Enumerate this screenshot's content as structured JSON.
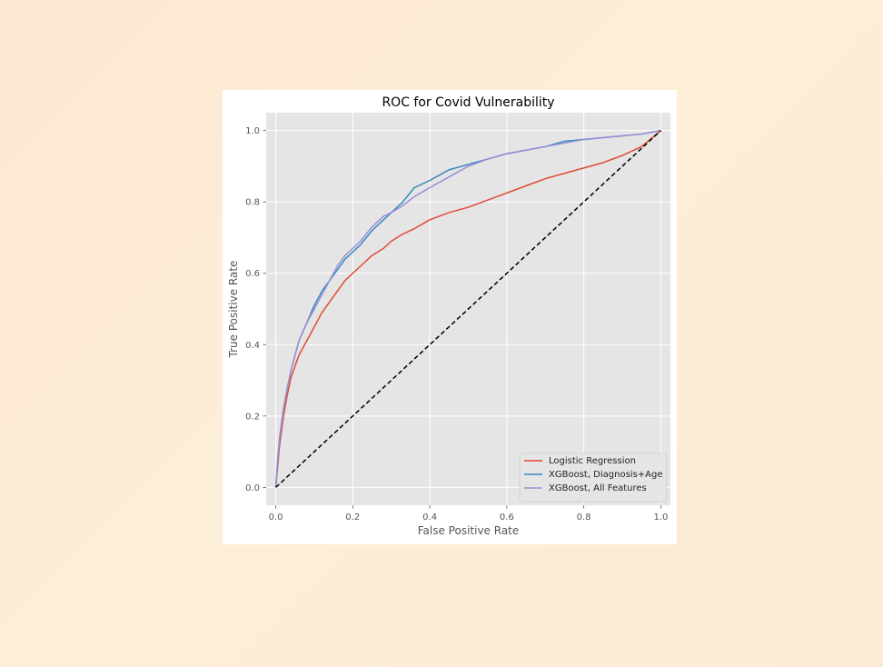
{
  "chart_data": {
    "type": "line",
    "title": "ROC for Covid Vulnerability",
    "xlabel": "False Positive Rate",
    "ylabel": "True Positive Rate",
    "xlim": [
      -0.025,
      1.025
    ],
    "ylim": [
      -0.05,
      1.05
    ],
    "xticks": [
      "0.0",
      "0.2",
      "0.4",
      "0.6",
      "0.8",
      "1.0"
    ],
    "yticks": [
      "0.0",
      "0.2",
      "0.4",
      "0.6",
      "0.8",
      "1.0"
    ],
    "grid": true,
    "legend_position": "lower-right",
    "series": [
      {
        "name": "Logistic Regression",
        "color": "#E24A33",
        "x": [
          0.0,
          0.005,
          0.01,
          0.02,
          0.03,
          0.04,
          0.05,
          0.06,
          0.08,
          0.1,
          0.12,
          0.14,
          0.16,
          0.18,
          0.2,
          0.22,
          0.25,
          0.28,
          0.3,
          0.33,
          0.36,
          0.4,
          0.45,
          0.5,
          0.55,
          0.6,
          0.65,
          0.7,
          0.75,
          0.8,
          0.85,
          0.9,
          0.95,
          1.0
        ],
        "y": [
          0.0,
          0.06,
          0.12,
          0.2,
          0.26,
          0.31,
          0.34,
          0.37,
          0.41,
          0.45,
          0.49,
          0.52,
          0.55,
          0.58,
          0.6,
          0.62,
          0.65,
          0.67,
          0.69,
          0.71,
          0.725,
          0.75,
          0.77,
          0.785,
          0.805,
          0.825,
          0.845,
          0.865,
          0.88,
          0.895,
          0.91,
          0.93,
          0.955,
          1.0
        ]
      },
      {
        "name": "XGBoost, Diagnosis+Age",
        "color": "#348ABD",
        "x": [
          0.0,
          0.005,
          0.01,
          0.02,
          0.03,
          0.04,
          0.05,
          0.06,
          0.08,
          0.1,
          0.12,
          0.14,
          0.16,
          0.18,
          0.2,
          0.22,
          0.25,
          0.28,
          0.3,
          0.33,
          0.36,
          0.4,
          0.45,
          0.5,
          0.55,
          0.6,
          0.65,
          0.7,
          0.75,
          0.8,
          0.85,
          0.9,
          0.95,
          1.0
        ],
        "y": [
          0.0,
          0.08,
          0.14,
          0.22,
          0.28,
          0.33,
          0.37,
          0.41,
          0.46,
          0.51,
          0.55,
          0.58,
          0.61,
          0.64,
          0.66,
          0.68,
          0.72,
          0.75,
          0.77,
          0.8,
          0.84,
          0.86,
          0.89,
          0.905,
          0.92,
          0.935,
          0.945,
          0.955,
          0.97,
          0.975,
          0.98,
          0.985,
          0.99,
          1.0
        ]
      },
      {
        "name": "XGBoost, All Features",
        "color": "#988ED5",
        "x": [
          0.0,
          0.005,
          0.01,
          0.02,
          0.03,
          0.04,
          0.05,
          0.06,
          0.08,
          0.1,
          0.12,
          0.14,
          0.16,
          0.18,
          0.2,
          0.22,
          0.25,
          0.28,
          0.3,
          0.33,
          0.36,
          0.4,
          0.45,
          0.5,
          0.55,
          0.6,
          0.65,
          0.7,
          0.75,
          0.8,
          0.85,
          0.9,
          0.95,
          1.0
        ],
        "y": [
          0.0,
          0.08,
          0.14,
          0.22,
          0.28,
          0.33,
          0.37,
          0.41,
          0.46,
          0.5,
          0.54,
          0.58,
          0.62,
          0.65,
          0.67,
          0.69,
          0.73,
          0.76,
          0.77,
          0.79,
          0.815,
          0.84,
          0.87,
          0.9,
          0.92,
          0.935,
          0.945,
          0.955,
          0.965,
          0.975,
          0.98,
          0.985,
          0.99,
          1.0
        ]
      },
      {
        "name": "",
        "color": "#000000",
        "dashed": true,
        "x": [
          0.0,
          1.0
        ],
        "y": [
          0.0,
          1.0
        ]
      }
    ]
  },
  "page": {
    "background": "#fdeed8",
    "plot_background": "#E5E5E5",
    "grid_color": "#FFFFFF"
  }
}
